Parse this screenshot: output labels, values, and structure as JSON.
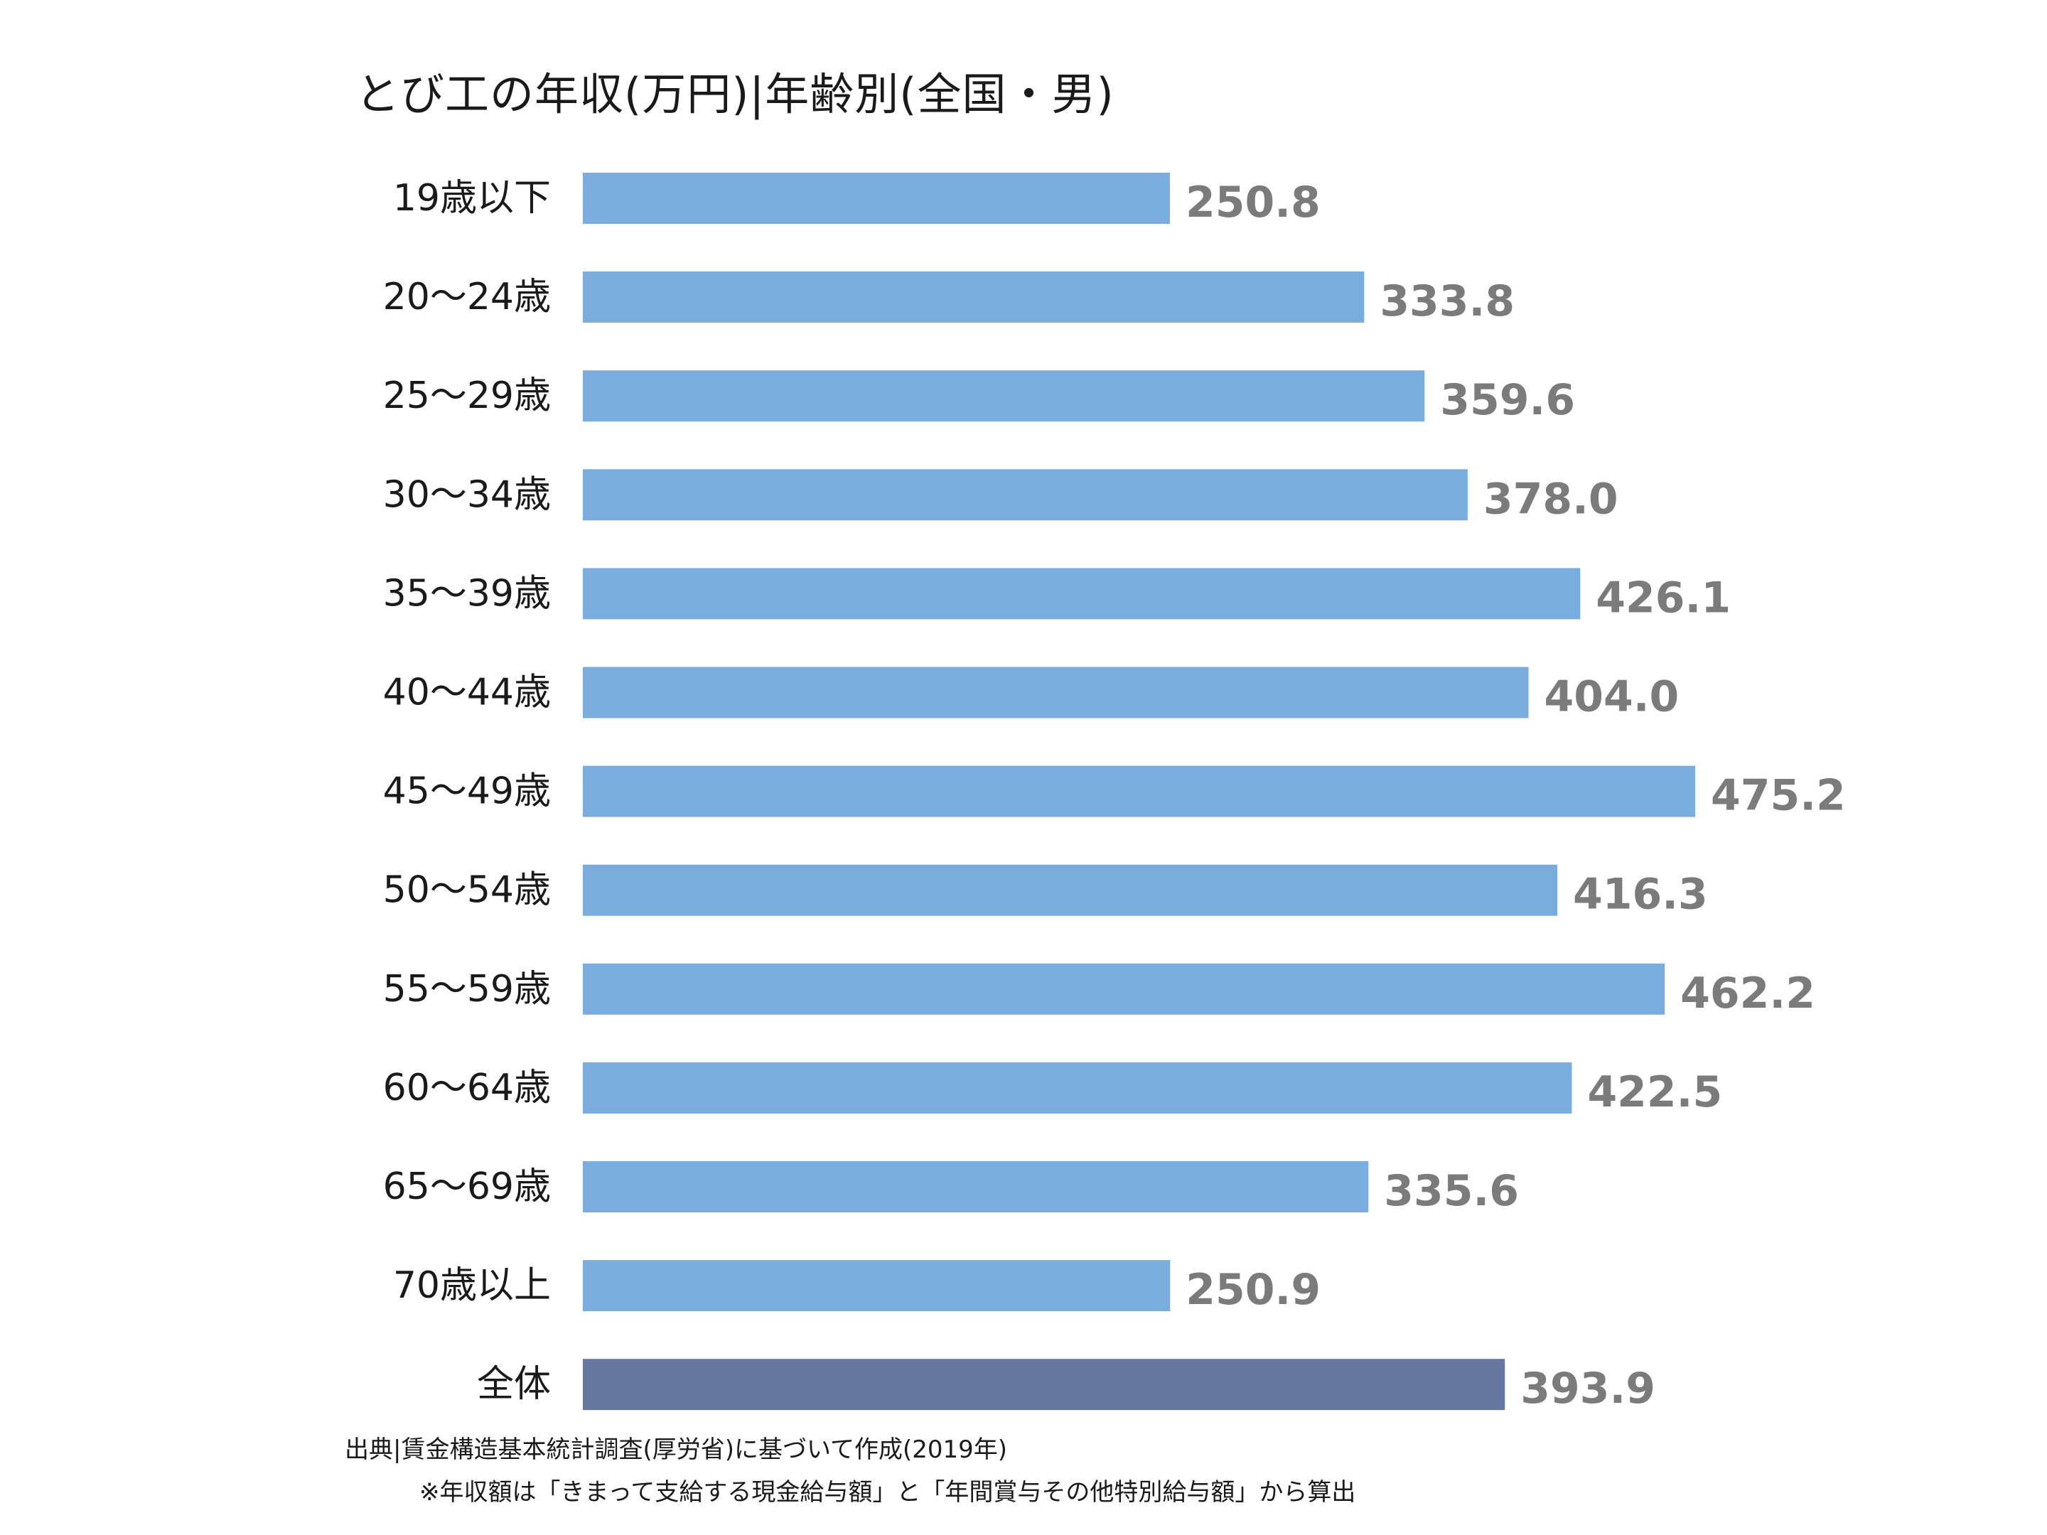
{
  "chart_data": {
    "type": "bar",
    "orientation": "horizontal",
    "title": "とび工の年収(万円)|年齢別(全国・男)",
    "categories": [
      "19歳以下",
      "20〜24歳",
      "25〜29歳",
      "30〜34歳",
      "35〜39歳",
      "40〜44歳",
      "45〜49歳",
      "50〜54歳",
      "55〜59歳",
      "60〜64歳",
      "65〜69歳",
      "70歳以上",
      "全体"
    ],
    "values": [
      250.8,
      333.8,
      359.6,
      378.0,
      426.1,
      404.0,
      475.2,
      416.3,
      462.2,
      422.5,
      335.6,
      250.9,
      393.9
    ],
    "value_labels": [
      "250.8",
      "333.8",
      "359.6",
      "378.0",
      "426.1",
      "404.0",
      "475.2",
      "416.3",
      "462.2",
      "422.5",
      "335.6",
      "250.9",
      "393.9"
    ],
    "xlim": [
      0,
      475.2
    ],
    "bar_color": "#7aaddd",
    "highlight_color": "#66789f",
    "highlight_index": 12,
    "grid": false,
    "legend": "none"
  },
  "footnotes": {
    "source": "出典|賃金構造基本統計調査(厚労省)に基づいて作成(2019年)",
    "calculation": "※年収額は「きまって支給する現金給与額」と「年間賞与その他特別給与額」から算出"
  }
}
